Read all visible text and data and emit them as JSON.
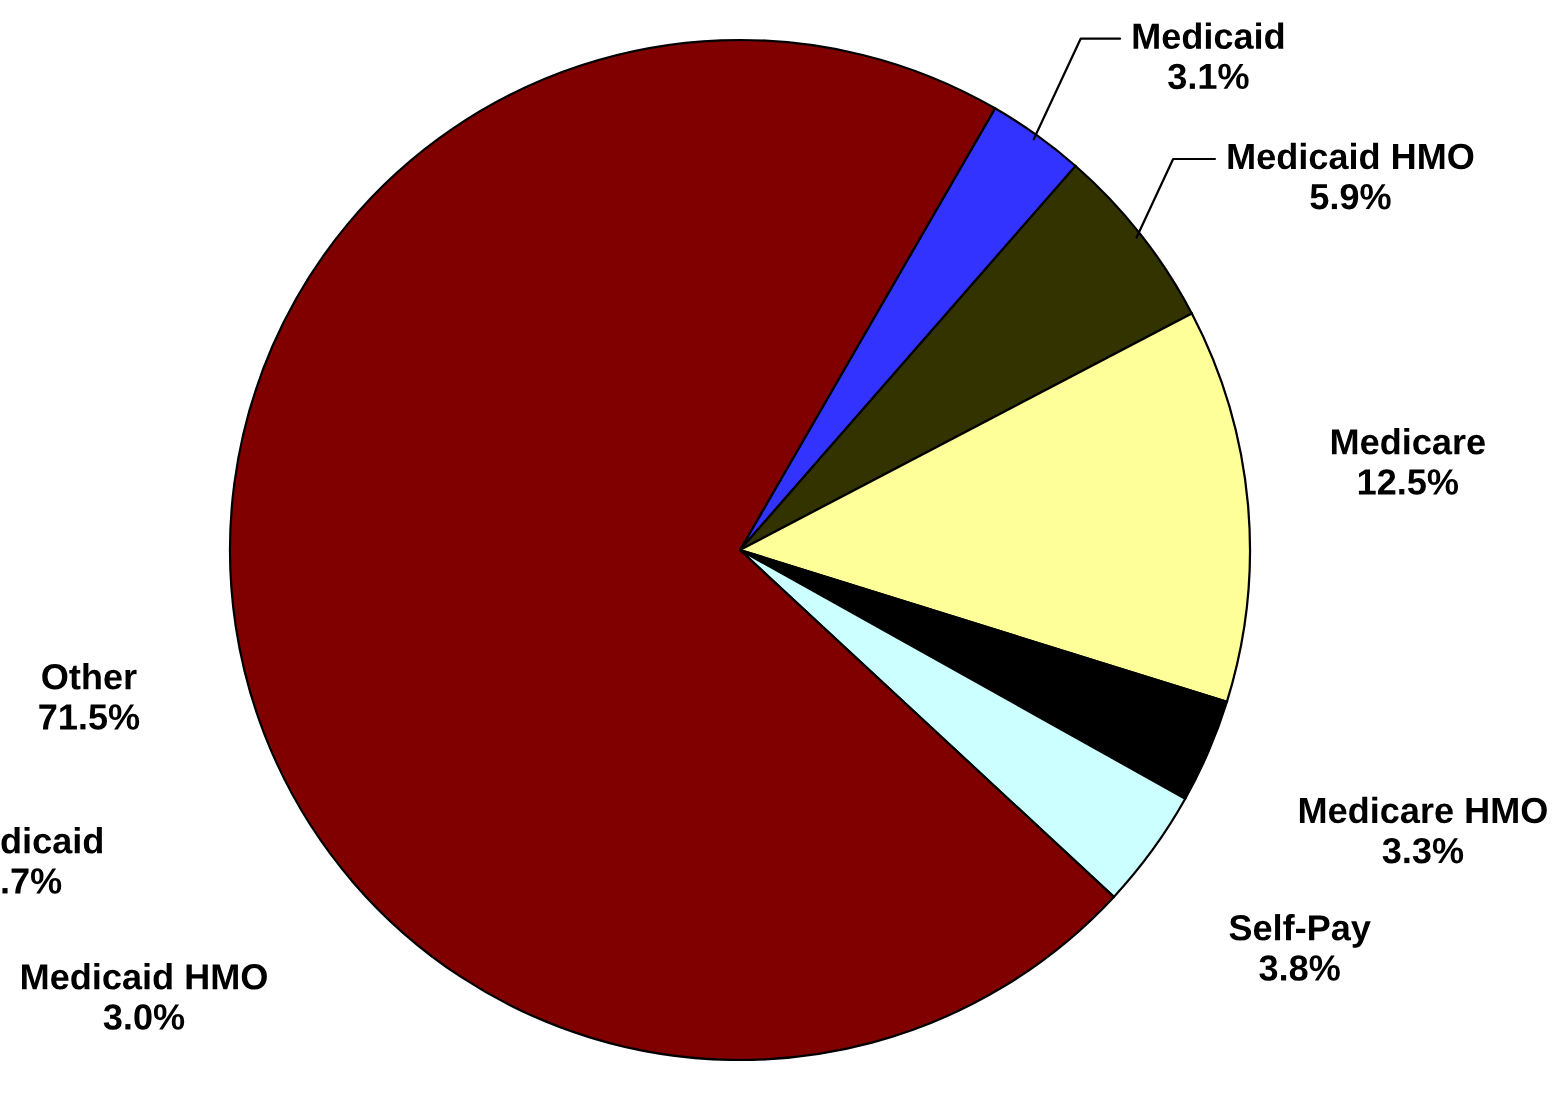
{
  "chart_data": {
    "type": "pie",
    "categories": [
      "Medicaid",
      "Medicaid HMO",
      "Medicare",
      "Medicare HMO",
      "Self-Pay",
      "Other"
    ],
    "values": [
      3.1,
      5.9,
      12.5,
      3.3,
      3.8,
      71.5
    ],
    "value_labels": [
      "3.1%",
      "5.9%",
      "12.5%",
      "3.3%",
      "3.8%",
      "71.5%"
    ],
    "colors": [
      "#3333ff",
      "#333300",
      "#ffff99",
      "#000000",
      "#ccffff",
      "#800000"
    ],
    "annotations": [
      "dicaid\n.7%",
      "Medicaid HMO\n3.0%"
    ]
  }
}
